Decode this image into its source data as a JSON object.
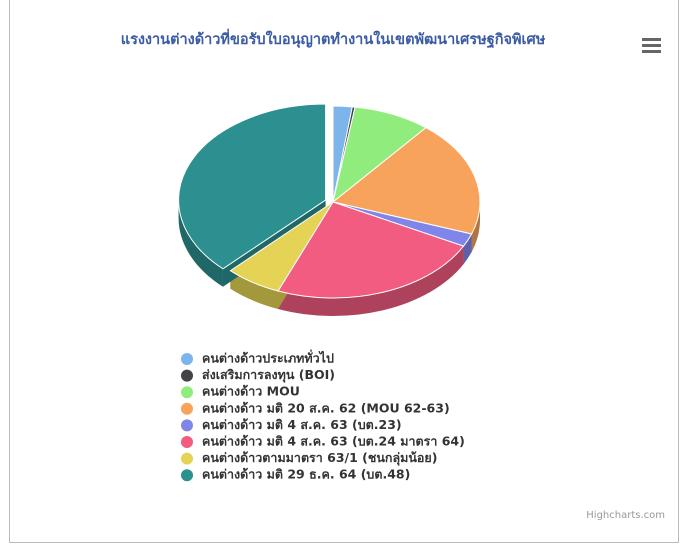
{
  "chart_data": {
    "type": "pie3d",
    "title": "แรงงานต่างด้าวที่ขอรับใบอนุญาตทำงานในเขตพัฒนาเศรษฐกิจพิเศษ",
    "categories": [
      "คนต่างด้าวประเภททั่วไป",
      "ส่งเสริมการลงทุน (BOI)",
      "คนต่างด้าว MOU",
      "คนต่างด้าว มติ 20 ส.ค. 62 (MOU 62-63)",
      "คนต่างด้าว มติ 4 ส.ค. 63 (บต.23)",
      "คนต่างด้าว มติ 4 ส.ค. 63 (บต.24 มาตรา 64)",
      "คนต่างด้าวตามมาตรา 63/1 (ชนกลุ่มน้อย)",
      "คนต่างด้าว มติ 29 ธ.ค. 64 (บต.48)"
    ],
    "values": [
      2.1,
      0.3,
      8.5,
      19.5,
      2.2,
      23.5,
      6.2,
      37.7
    ],
    "colors": [
      "#7cb5ec",
      "#434348",
      "#90ed7d",
      "#f7a35c",
      "#8085e9",
      "#f15c80",
      "#e4d354",
      "#2b908f"
    ],
    "credit": "Highcharts.com"
  }
}
